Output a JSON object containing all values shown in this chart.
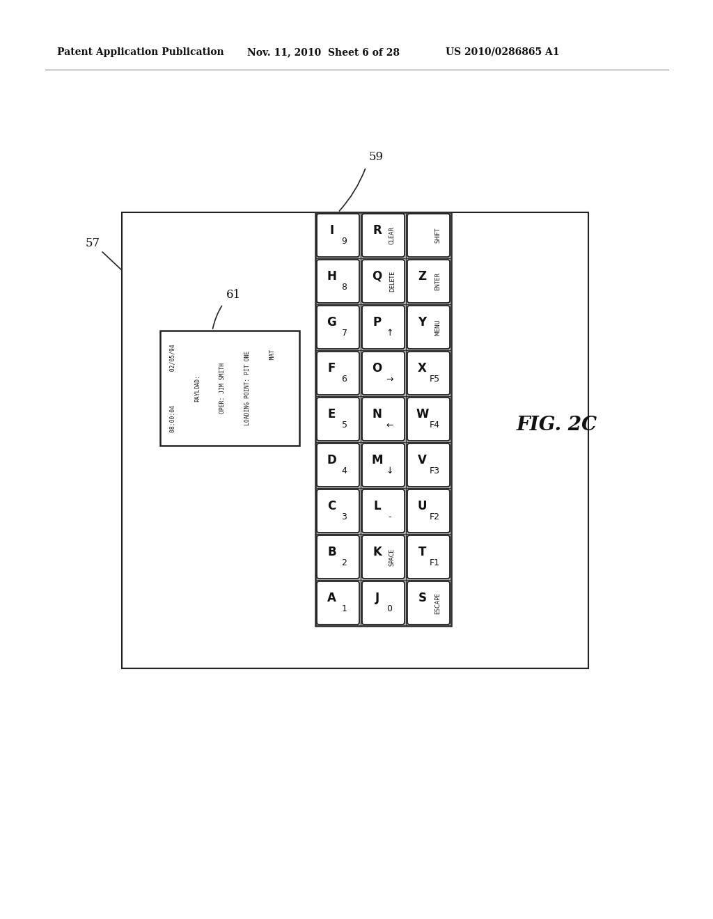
{
  "bg_color": "#ffffff",
  "header_text1": "Patent Application Publication",
  "header_text2": "Nov. 11, 2010  Sheet 6 of 28",
  "header_text3": "US 2010/0286865 A1",
  "fig_label": "FIG. 2C",
  "label_57": "57",
  "label_59": "59",
  "label_61": "61",
  "display_lines": [
    "08:00:04          02/05/94",
    "PAYLOAD:",
    "OPER: JIM SMITH",
    "LOADING POINT: PIT ONE",
    "                    MAT"
  ],
  "keys": [
    [
      [
        "I",
        "9"
      ],
      [
        "R",
        "CLEAR"
      ],
      [
        "",
        "SHIFT"
      ]
    ],
    [
      [
        "H",
        "8"
      ],
      [
        "Q",
        "DELETE"
      ],
      [
        "Z",
        "ENTER"
      ]
    ],
    [
      [
        "G",
        "7"
      ],
      [
        "P",
        "↑"
      ],
      [
        "Y",
        "MENU"
      ]
    ],
    [
      [
        "F",
        "6"
      ],
      [
        "O",
        "→"
      ],
      [
        "X",
        "F5"
      ]
    ],
    [
      [
        "E",
        "5"
      ],
      [
        "N",
        "←"
      ],
      [
        "W",
        "F4"
      ]
    ],
    [
      [
        "D",
        "4"
      ],
      [
        "M",
        "↓"
      ],
      [
        "V",
        "F3"
      ]
    ],
    [
      [
        "C",
        "3"
      ],
      [
        "L",
        "-"
      ],
      [
        "U",
        "F2"
      ]
    ],
    [
      [
        "B",
        "2"
      ],
      [
        "K",
        "SPACE"
      ],
      [
        "T",
        "F1"
      ]
    ],
    [
      [
        "A",
        "1"
      ],
      [
        "J",
        "0"
      ],
      [
        "S",
        "ESCAPE"
      ]
    ]
  ]
}
